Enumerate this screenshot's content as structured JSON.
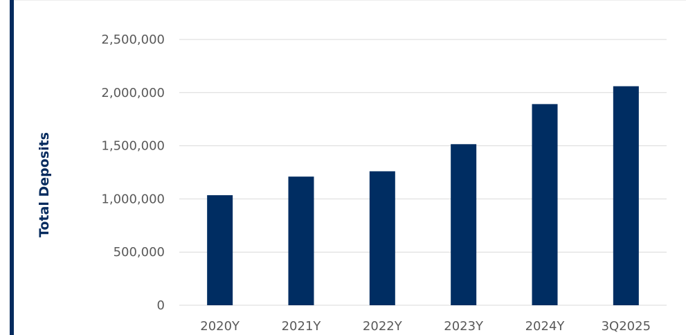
{
  "colors": {
    "accent": "#062b5e",
    "bar": "#002d62",
    "grid": "#d9d9d9",
    "tick_text": "#595959"
  },
  "chart_data": {
    "type": "bar",
    "categories": [
      "2020Y",
      "2021Y",
      "2022Y",
      "2023Y",
      "2024Y",
      "3Q2025"
    ],
    "values": [
      1035000,
      1210000,
      1260000,
      1515000,
      1892000,
      2060000
    ],
    "ylabel": "Total Deposits",
    "ylim": [
      0,
      2500000
    ],
    "yticks": [
      0,
      500000,
      1000000,
      1500000,
      2000000,
      2500000
    ],
    "ytick_labels": [
      "0",
      "500,000",
      "1,000,000",
      "1,500,000",
      "2,000,000",
      "2,500,000"
    ],
    "grid": true,
    "legend": false
  }
}
